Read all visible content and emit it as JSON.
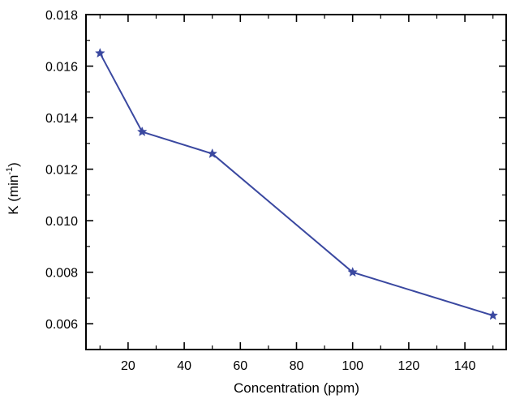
{
  "chart_data": {
    "type": "line",
    "xlabel": "Concentration (ppm)",
    "ylabel_main": "K (min",
    "ylabel_sup": "-1",
    "ylabel_close": ")",
    "xlim": [
      5,
      155
    ],
    "ylim": [
      0.005,
      0.018
    ],
    "x_ticks": [
      20,
      40,
      60,
      80,
      100,
      120,
      140
    ],
    "x_tick_labels": [
      "20",
      "40",
      "60",
      "80",
      "100",
      "120",
      "140"
    ],
    "y_ticks": [
      0.006,
      0.008,
      0.01,
      0.012,
      0.014,
      0.016,
      0.018
    ],
    "y_tick_labels": [
      "0.006",
      "0.008",
      "0.010",
      "0.012",
      "0.014",
      "0.016",
      "0.018"
    ],
    "grid": false,
    "series": [
      {
        "color": "#3a48a0",
        "marker": "star",
        "x": [
          10,
          25,
          50,
          100,
          150
        ],
        "y": [
          0.0165,
          0.01345,
          0.0126,
          0.008,
          0.00632
        ]
      }
    ]
  }
}
